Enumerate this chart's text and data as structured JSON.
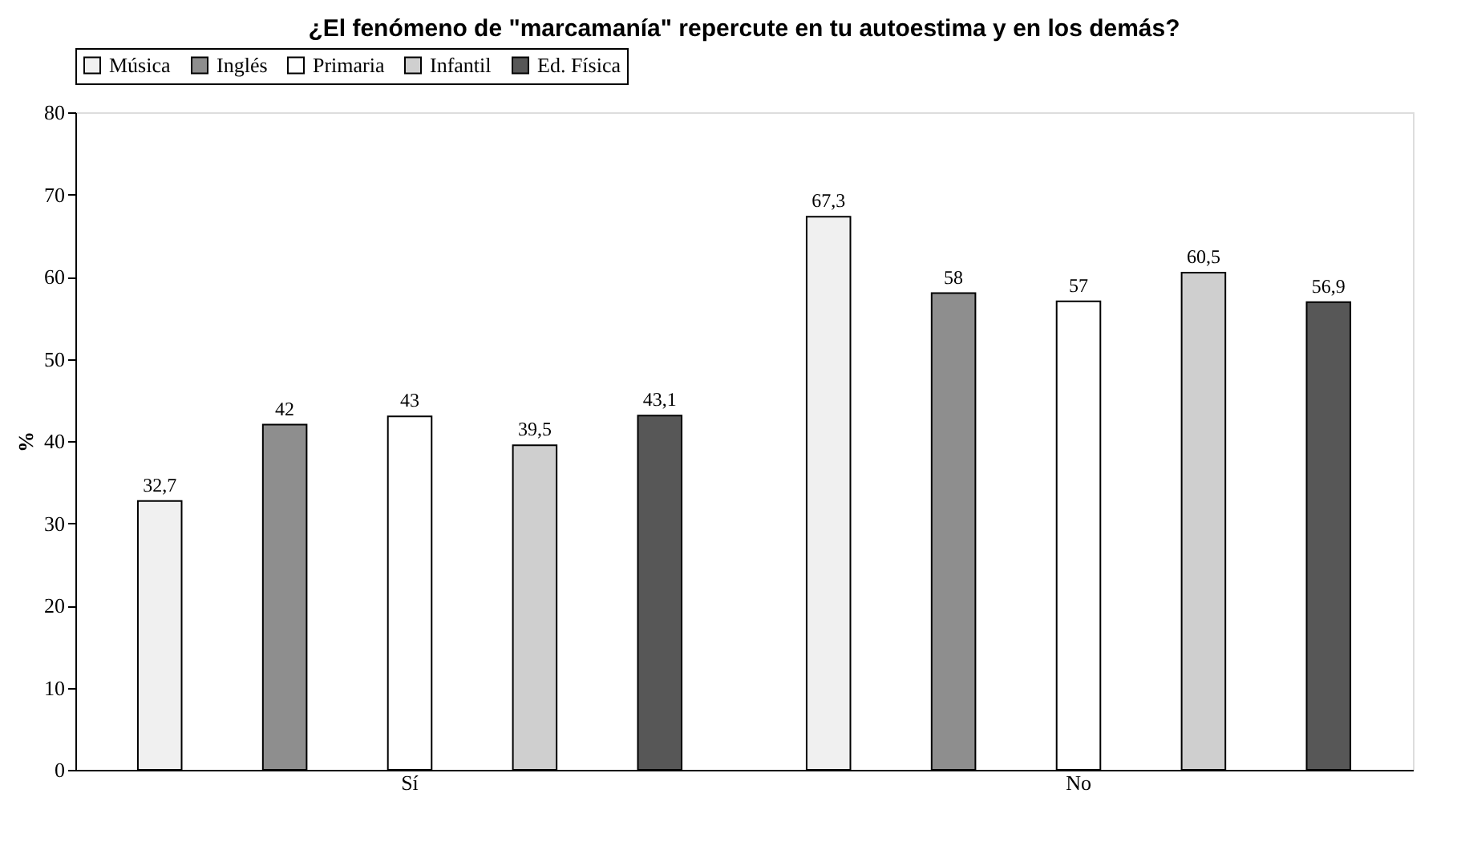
{
  "chart_data": {
    "type": "bar",
    "title": "¿El fenómeno de \"marcamanía\" repercute en tu autoestima y en los demás?",
    "ylabel": "%",
    "categories": [
      "Sí",
      "No"
    ],
    "series": [
      {
        "name": "Música",
        "color": "#f0f0f0",
        "values": [
          32.7,
          67.3
        ],
        "value_labels": [
          "32,7",
          "67,3"
        ]
      },
      {
        "name": "Inglés",
        "color": "#8e8e8e",
        "values": [
          42,
          58
        ],
        "value_labels": [
          "42",
          "58"
        ]
      },
      {
        "name": "Primaria",
        "color": "#ffffff",
        "values": [
          43,
          57
        ],
        "value_labels": [
          "43",
          "57"
        ]
      },
      {
        "name": "Infantil",
        "color": "#cfcfcf",
        "values": [
          39.5,
          60.5
        ],
        "value_labels": [
          "39,5",
          "60,5"
        ]
      },
      {
        "name": "Ed. Física",
        "color": "#575757",
        "values": [
          43.1,
          56.9
        ],
        "value_labels": [
          "43,1",
          "56,9"
        ]
      }
    ],
    "ylim": [
      0,
      80
    ],
    "yticks": [
      0,
      10,
      20,
      30,
      40,
      50,
      60,
      70,
      80
    ],
    "legend": "top",
    "grid": false
  }
}
